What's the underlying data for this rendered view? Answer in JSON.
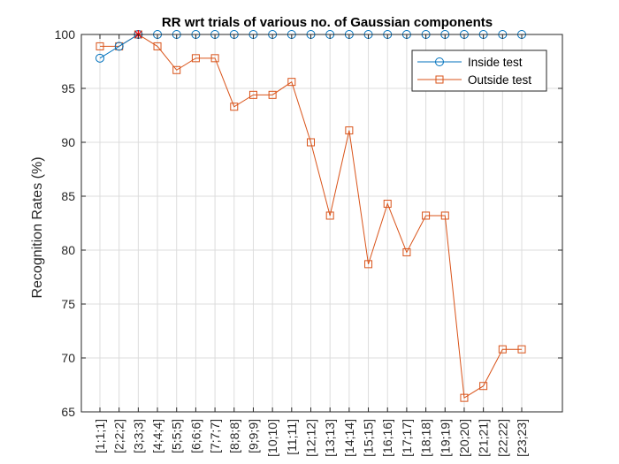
{
  "chart_data": {
    "type": "line",
    "title": "RR wrt trials of various no. of Gaussian components",
    "xlabel": "",
    "ylabel": "Recognition Rates (%)",
    "ylim": [
      65,
      100
    ],
    "yticks": [
      65,
      70,
      75,
      80,
      85,
      90,
      95,
      100
    ],
    "grid": true,
    "legend_location": "top-right",
    "categories": [
      "[1;1;1]",
      "[2;2;2]",
      "[3;3;3]",
      "[4;4;4]",
      "[5;5;5]",
      "[6;6;6]",
      "[7;7;7]",
      "[8;8;8]",
      "[9;9;9]",
      "[10;10]",
      "[11;11]",
      "[12;12]",
      "[13;13]",
      "[14;14]",
      "[15;15]",
      "[16;16]",
      "[17;17]",
      "[18;18]",
      "[19;19]",
      "[20;20]",
      "[21;21]",
      "[22;22]",
      "[23;23]"
    ],
    "series": [
      {
        "name": "Inside test",
        "color": "#0072BD",
        "marker": "circle",
        "values": [
          97.8,
          98.9,
          100,
          100,
          100,
          100,
          100,
          100,
          100,
          100,
          100,
          100,
          100,
          100,
          100,
          100,
          100,
          100,
          100,
          100,
          100,
          100,
          100
        ]
      },
      {
        "name": "Outside test",
        "color": "#D95319",
        "marker": "square",
        "values": [
          98.9,
          98.9,
          100,
          98.9,
          96.7,
          97.8,
          97.8,
          93.3,
          94.4,
          94.4,
          95.6,
          90.0,
          83.2,
          91.1,
          78.7,
          84.3,
          79.8,
          83.2,
          83.2,
          66.3,
          67.4,
          70.8,
          70.8
        ]
      }
    ],
    "highlight": {
      "category": "[3;3;3]",
      "value": 100,
      "color": "#ff0000",
      "marker": "asterisk"
    }
  }
}
